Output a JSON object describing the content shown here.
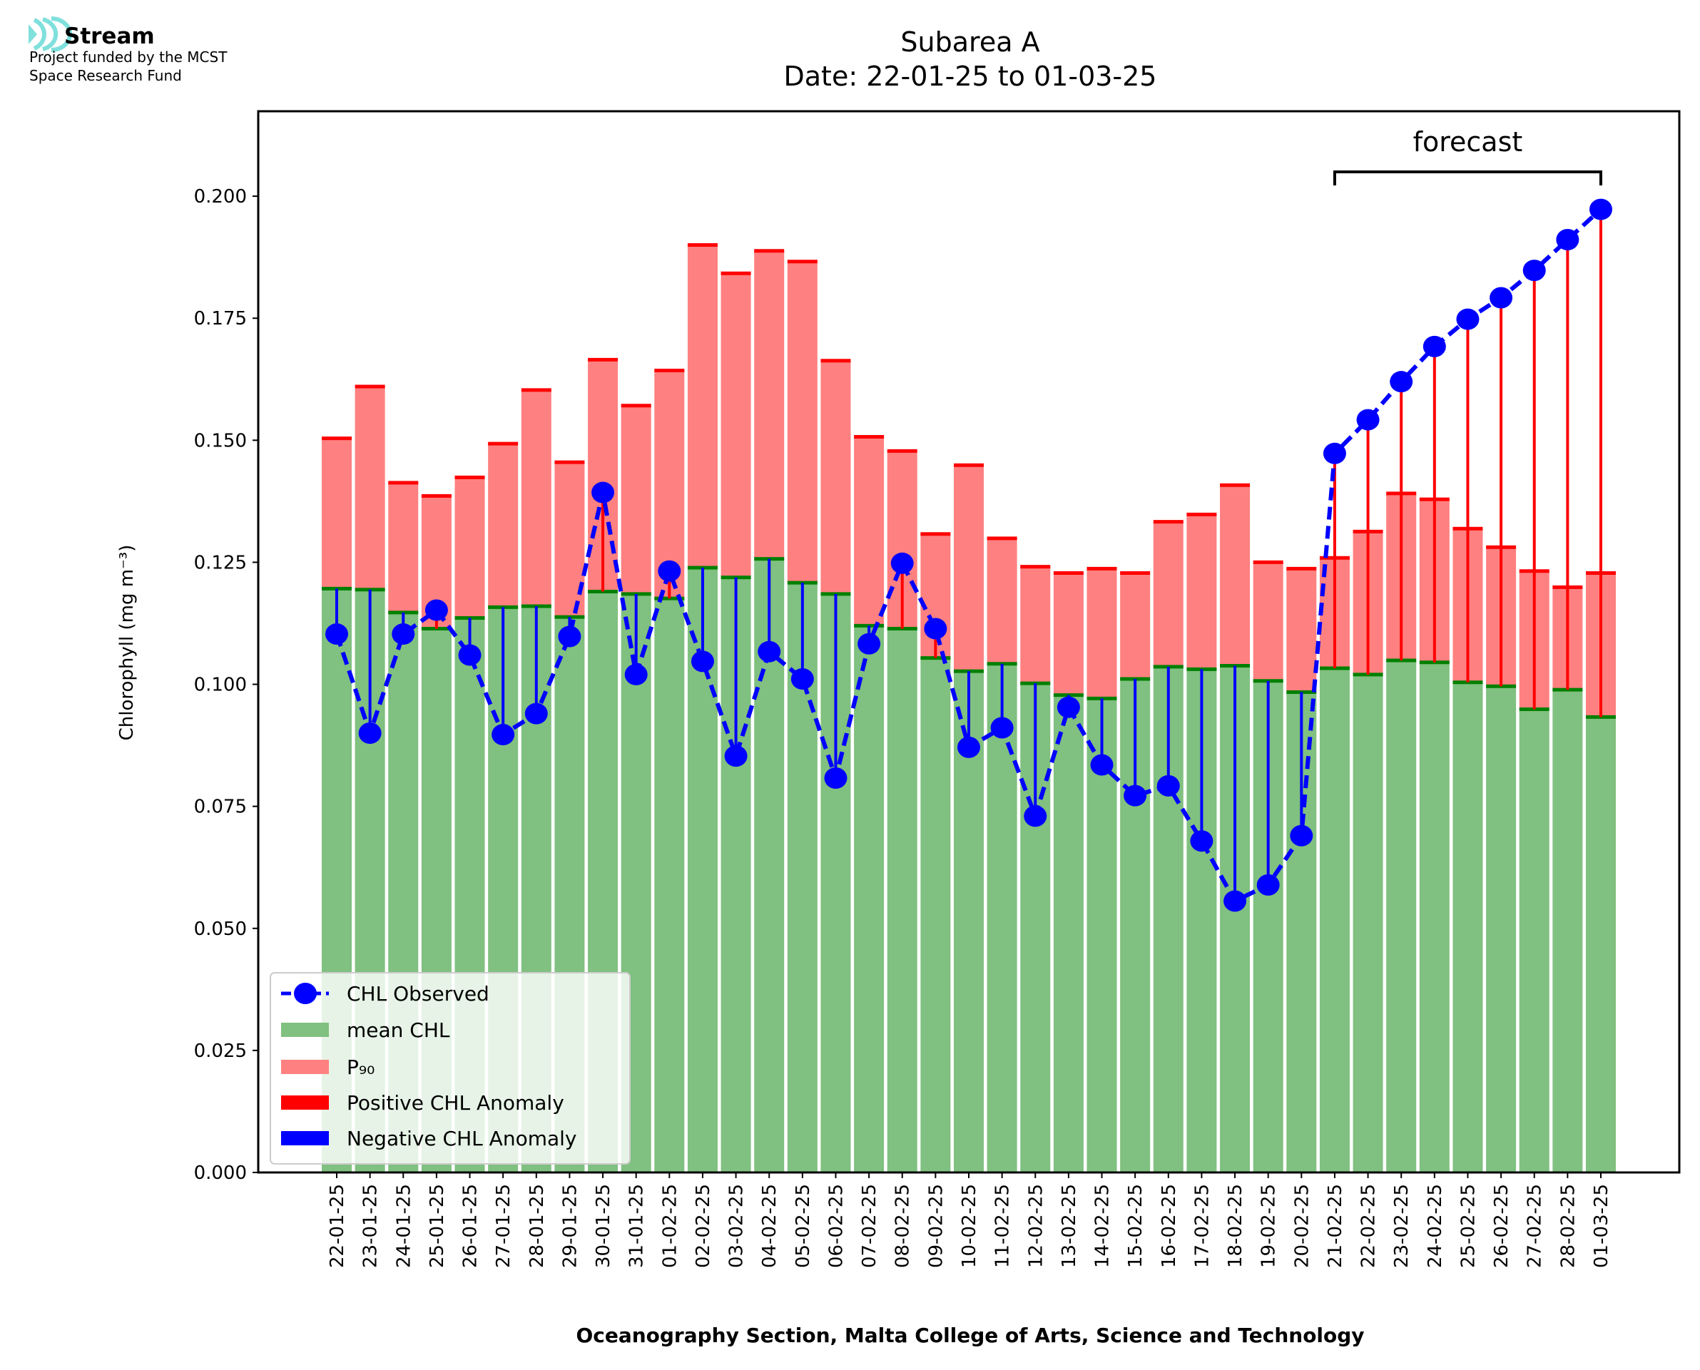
{
  "logo": {
    "name": "Stream",
    "line1": "Project funded by the MCST",
    "line2": "Space Research Fund",
    "color": "#7fe0dc"
  },
  "chart_data": {
    "type": "bar",
    "title": "Subarea A",
    "subtitle": "Date: 22-01-25 to 01-03-25",
    "xlabel": "Oceanography Section, Malta College of Arts, Science and Technology",
    "ylabel": "Chlorophyll (mg m⁻³)",
    "ylim": [
      0,
      0.2174
    ],
    "yticks": [
      "0.000",
      "0.025",
      "0.050",
      "0.075",
      "0.100",
      "0.125",
      "0.150",
      "0.175",
      "0.200"
    ],
    "grid": false,
    "legend_position": "lower-left",
    "annotation": {
      "text": "forecast",
      "from": "21-02-25",
      "to": "01-03-25"
    },
    "categories": [
      "22-01-25",
      "23-01-25",
      "24-01-25",
      "25-01-25",
      "26-01-25",
      "27-01-25",
      "28-01-25",
      "29-01-25",
      "30-01-25",
      "31-01-25",
      "01-02-25",
      "02-02-25",
      "03-02-25",
      "04-02-25",
      "05-02-25",
      "06-02-25",
      "07-02-25",
      "08-02-25",
      "09-02-25",
      "10-02-25",
      "11-02-25",
      "12-02-25",
      "13-02-25",
      "14-02-25",
      "15-02-25",
      "16-02-25",
      "17-02-25",
      "18-02-25",
      "19-02-25",
      "20-02-25",
      "21-02-25",
      "22-02-25",
      "23-02-25",
      "24-02-25",
      "25-02-25",
      "26-02-25",
      "27-02-25",
      "28-02-25",
      "01-03-25"
    ],
    "series": [
      {
        "name": "CHL Observed",
        "color": "#0000ff",
        "values": [
          0.1103,
          0.09,
          0.1103,
          0.1152,
          0.106,
          0.0897,
          0.094,
          0.1098,
          0.1393,
          0.102,
          0.1232,
          0.1047,
          0.0853,
          0.1067,
          0.1011,
          0.0808,
          0.1083,
          0.1248,
          0.1114,
          0.0871,
          0.0911,
          0.073,
          0.0953,
          0.0835,
          0.0772,
          0.0792,
          0.0679,
          0.0556,
          0.0589,
          0.069,
          0.1473,
          0.1542,
          0.162,
          0.1692,
          0.1748,
          0.1792,
          0.1848,
          0.1911,
          0.1973
        ]
      },
      {
        "name": "mean CHL",
        "color": "#80c080",
        "edge": "#008000",
        "values": [
          0.1196,
          0.1194,
          0.1147,
          0.1114,
          0.1136,
          0.1158,
          0.116,
          0.1138,
          0.119,
          0.1185,
          0.1176,
          0.1239,
          0.1219,
          0.1257,
          0.1208,
          0.1185,
          0.112,
          0.1114,
          0.1054,
          0.1027,
          0.1042,
          0.1002,
          0.0978,
          0.0971,
          0.1011,
          0.1036,
          0.1031,
          0.1038,
          0.1007,
          0.0984,
          0.1033,
          0.102,
          0.1049,
          0.1045,
          0.1004,
          0.0996,
          0.0949,
          0.0989,
          0.0933
        ]
      },
      {
        "name": "P₉₀",
        "color": "#ff8080",
        "edge": "#ff0000",
        "values": [
          0.1504,
          0.161,
          0.1413,
          0.1386,
          0.1424,
          0.1493,
          0.1603,
          0.1455,
          0.1665,
          0.1571,
          0.1643,
          0.19,
          0.1842,
          0.1888,
          0.1866,
          0.1663,
          0.1507,
          0.1478,
          0.1308,
          0.1449,
          0.1299,
          0.1241,
          0.1228,
          0.1237,
          0.1228,
          0.1333,
          0.1348,
          0.1408,
          0.125,
          0.1237,
          0.1259,
          0.1313,
          0.1391,
          0.1379,
          0.1319,
          0.1281,
          0.1232,
          0.1199,
          0.1228
        ]
      },
      {
        "name": "Positive CHL Anomaly",
        "color": "#ff0000"
      },
      {
        "name": "Negative CHL Anomaly",
        "color": "#0000ff"
      }
    ]
  }
}
